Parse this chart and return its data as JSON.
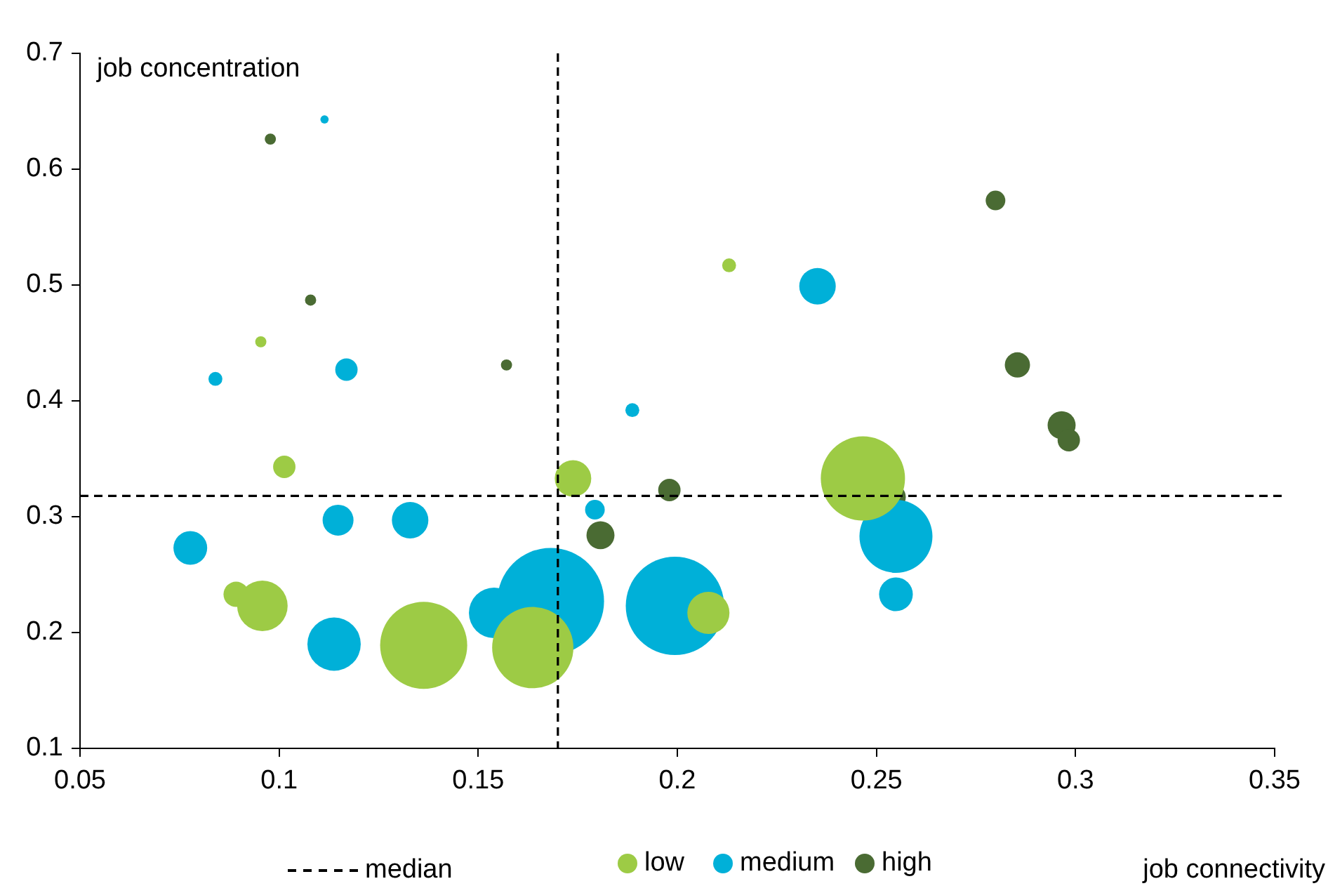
{
  "chart_data": {
    "type": "bubble",
    "xlabel": "job connectivity",
    "ylabel": "job concentration",
    "xlim": [
      0.05,
      0.35
    ],
    "xticks": [
      0.05,
      0.1,
      0.15,
      0.2,
      0.25,
      0.3,
      0.35
    ],
    "ylim": [
      0.1,
      0.7
    ],
    "yticks": [
      0.1,
      0.2,
      0.3,
      0.4,
      0.5,
      0.6,
      0.7
    ],
    "grid": false,
    "legend": "bottom",
    "ref_lines": [
      {
        "axis": "x",
        "value": 0.17,
        "label": "median",
        "line_style": "dashed",
        "color": "#000000"
      },
      {
        "axis": "y",
        "value": 0.318,
        "line_style": "dashed",
        "color": "#000000"
      }
    ],
    "series": [
      {
        "name": "low",
        "color": "#9dcb45",
        "x": [
          0.0892,
          0.0958,
          0.0954,
          0.1013,
          0.1363,
          0.1637,
          0.1738,
          0.2078,
          0.213,
          0.2466
        ],
        "values": [
          0.233,
          0.223,
          0.451,
          0.343,
          0.189,
          0.187,
          0.333,
          0.217,
          0.517,
          0.333
        ],
        "sizes": [
          0.056,
          0.224,
          0.011,
          0.044,
          0.666,
          0.58,
          0.117,
          0.156,
          0.017,
          0.623
        ]
      },
      {
        "name": "medium",
        "color": "#00b0d8",
        "x": [
          0.0777,
          0.084,
          0.1114,
          0.1148,
          0.1169,
          0.1138,
          0.1329,
          0.154,
          0.1682,
          0.1793,
          0.1887,
          0.1994,
          0.2352,
          0.2549,
          0.2549
        ],
        "values": [
          0.273,
          0.419,
          0.643,
          0.297,
          0.427,
          0.19,
          0.297,
          0.217,
          0.227,
          0.306,
          0.392,
          0.223,
          0.499,
          0.283,
          0.233
        ],
        "sizes": [
          0.1,
          0.017,
          0.006,
          0.084,
          0.044,
          0.25,
          0.117,
          0.224,
          1,
          0.034,
          0.017,
          0.85,
          0.117,
          0.468,
          0.1
        ]
      },
      {
        "name": "high",
        "color": "#4a6b33",
        "x": [
          0.0978,
          0.1079,
          0.1571,
          0.1807,
          0.198,
          0.2542,
          0.2799,
          0.2854,
          0.2965,
          0.2983
        ],
        "values": [
          0.626,
          0.487,
          0.431,
          0.284,
          0.323,
          0.317,
          0.573,
          0.431,
          0.379,
          0.366
        ],
        "sizes": [
          0.011,
          0.011,
          0.011,
          0.069,
          0.044,
          0.056,
          0.034,
          0.056,
          0.069,
          0.044
        ]
      }
    ]
  }
}
